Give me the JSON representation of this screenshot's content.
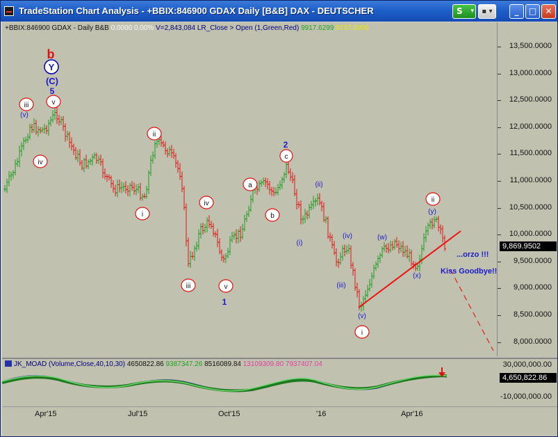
{
  "window": {
    "title": "TradeStation Chart Analysis - +BBIX:846900 GDAX Daily [B&B] DAX - DEUTSCHER",
    "buttons": {
      "s": "S",
      "tool": "▪",
      "minimize": "_",
      "maximize": "□",
      "close": "✕"
    }
  },
  "legend": {
    "symbol": "+BBIX:846900 GDAX - Daily  B&B",
    "vals": "0.0000  0.00%",
    "volume": "V=2,843,084",
    "study": "LR_Close > Open (1,Green,Red)",
    "v1": "9917.6299",
    "v2": "9737.0000"
  },
  "price_axis": {
    "labels": [
      "13,500.0000",
      "13,000.0000",
      "12,500.0000",
      "12,000.0000",
      "11,500.0000",
      "11,000.0000",
      "10,500.0000",
      "10,000.0000",
      "9,500.0000",
      "9,000.0000",
      "8,500.0000",
      "8,000.0000"
    ],
    "last_price": "9,869.9502"
  },
  "oscillator": {
    "name": "JK_MOAD (Volume,Close,40,10,30)",
    "v1": "4650822.86",
    "v2": "9387347.26",
    "v3": "8516089.84",
    "v4": "13109309.80",
    "v5": "7937407.04",
    "axis_labels": [
      "30,000,000.00",
      "-10,000,000.00"
    ],
    "last_value": "4,650,822.86"
  },
  "date_axis": {
    "labels": [
      "Apr'15",
      "Jul'15",
      "Oct'15",
      "'16",
      "Apr'16"
    ]
  },
  "annotations": {
    "wave_b": "b",
    "wave_Y": "Y",
    "wave_C": "(C)",
    "wave_5": "5",
    "iii_top": "iii",
    "v_top": "v",
    "iv_top": "iv",
    "v_paren_top": "(v)",
    "ii_mid": "ii",
    "i_mid": "i",
    "iv_mid": "iv",
    "iii_mid": "iii",
    "v_mid": "v",
    "one": "1",
    "a": "a",
    "b_small": "b",
    "c": "c",
    "two": "2",
    "ii_paren": "(ii)",
    "i_paren": "(i)",
    "iii_paren": "(iii)",
    "iv_paren": "(iv)",
    "v_paren": "(v)",
    "i_low": "i",
    "w_paren": "(w)",
    "x_paren": "(x)",
    "ii_right": "ii",
    "y_paren": "(y)",
    "orzo": "...orzo !!!",
    "kiss": "Kiss Goodbye!!"
  }
}
